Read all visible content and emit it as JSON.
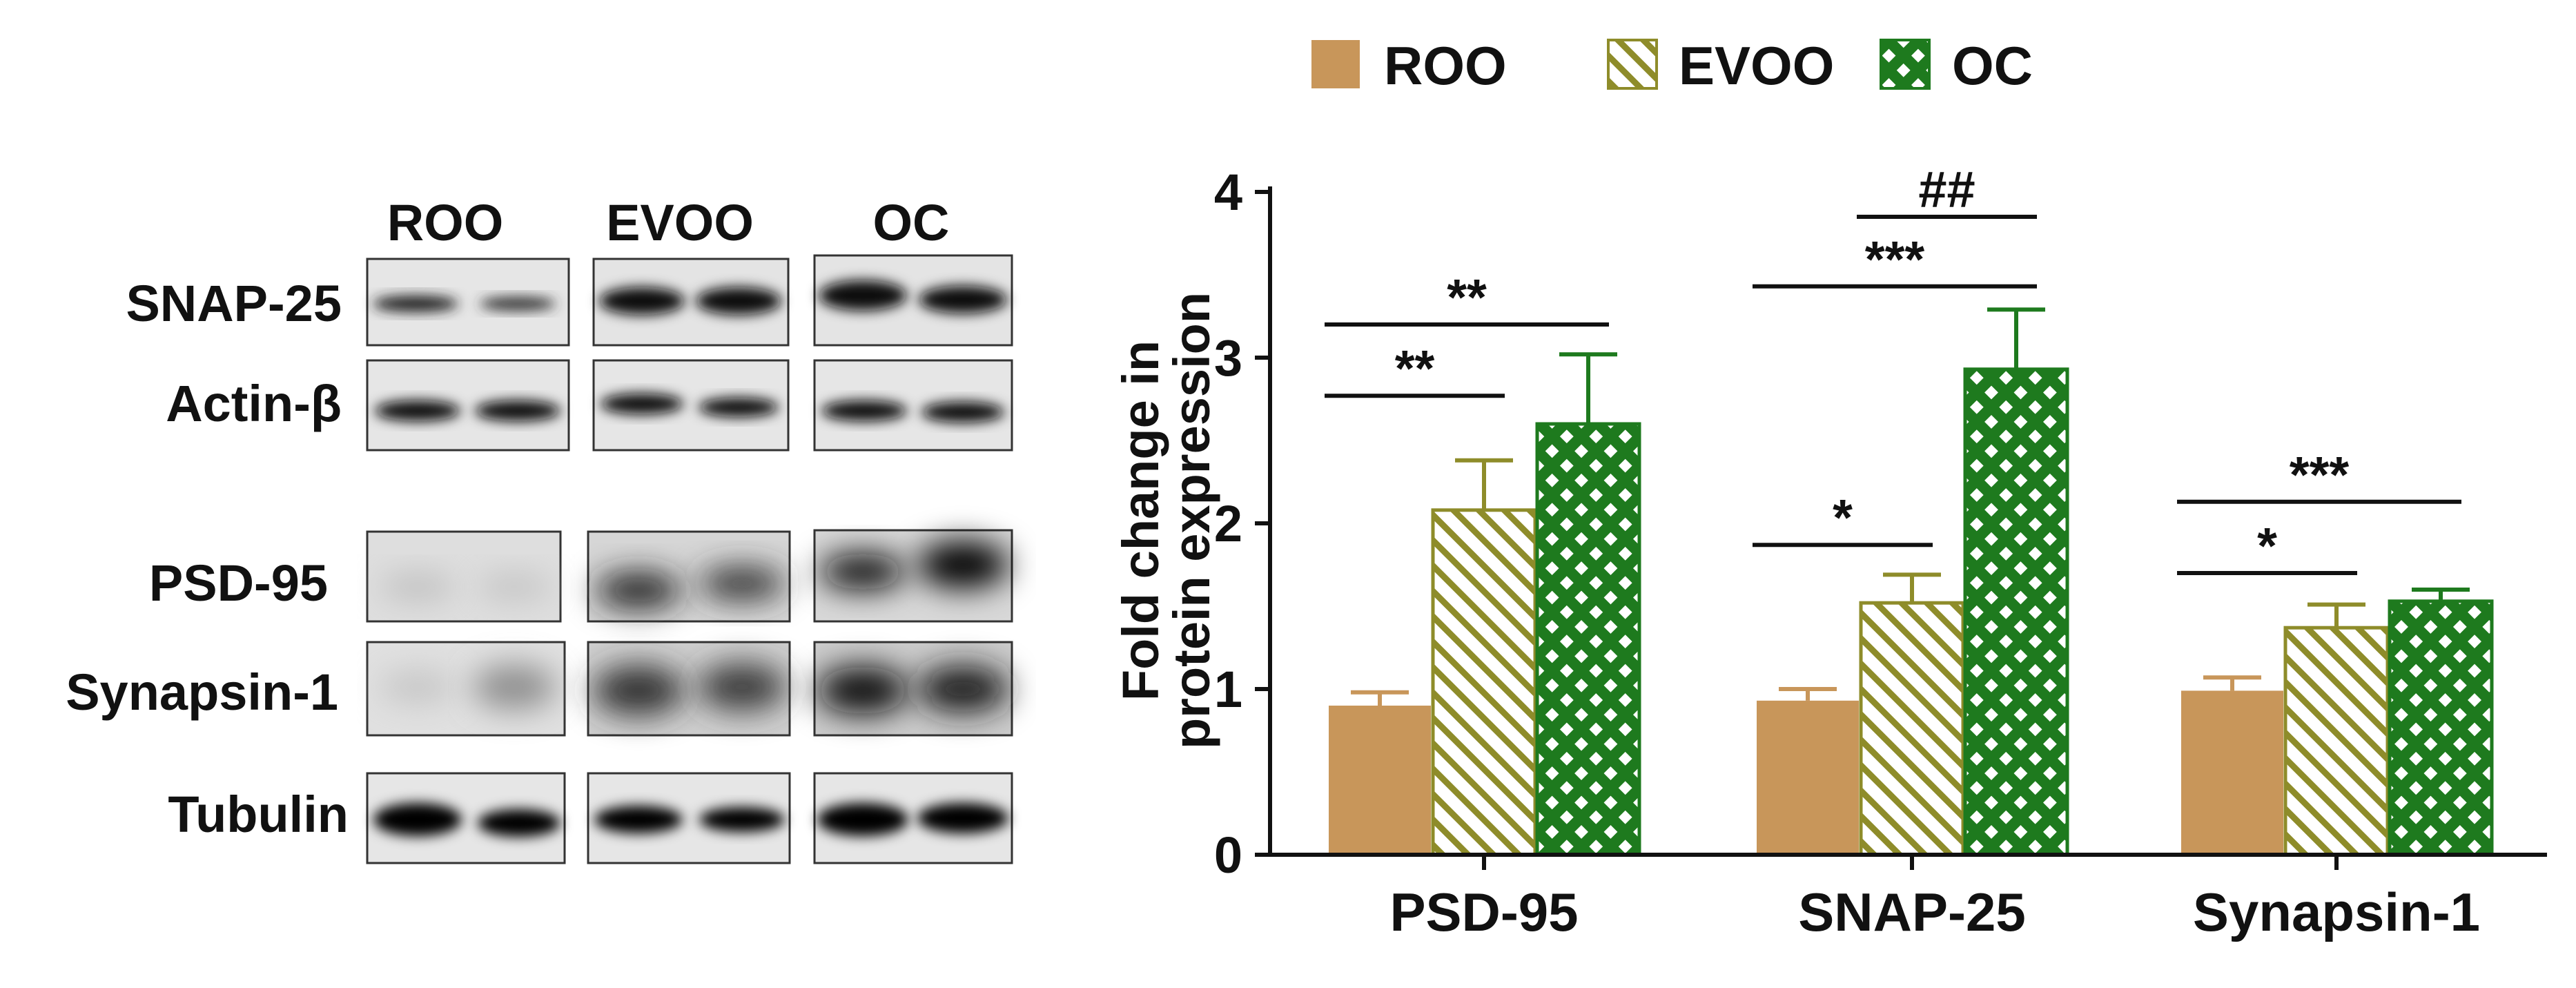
{
  "western_blot": {
    "group_labels": [
      "ROO",
      "EVOO",
      "OC"
    ],
    "row_labels": [
      "SNAP-25",
      "Actin-β",
      "PSD-95",
      "Synapsin-1",
      "Tubulin"
    ]
  },
  "legend": {
    "placement": "top",
    "items": [
      {
        "label": "ROO",
        "pattern": "solid"
      },
      {
        "label": "EVOO",
        "pattern": "diagonal-hatch"
      },
      {
        "label": "OC",
        "pattern": "checkered"
      }
    ]
  },
  "colors": {
    "roo": "#C8965A",
    "evoo_line": "#8E8C2A",
    "oc": "#1E7A1E",
    "axis": "#111111"
  },
  "chart_data": {
    "type": "bar",
    "ylabel_line1": "Fold change in",
    "ylabel_line2": "protein expression",
    "xlabel": "",
    "ylim": [
      0,
      4
    ],
    "yticks": [
      "0",
      "1",
      "2",
      "3",
      "4"
    ],
    "categories": [
      "PSD-95",
      "SNAP-25",
      "Synapsin-1"
    ],
    "series": [
      {
        "name": "ROO",
        "values": [
          0.9,
          0.93,
          0.99
        ],
        "errors": [
          0.08,
          0.07,
          0.08
        ]
      },
      {
        "name": "EVOO",
        "values": [
          2.08,
          1.52,
          1.37
        ],
        "errors": [
          0.3,
          0.17,
          0.14
        ]
      },
      {
        "name": "OC",
        "values": [
          2.6,
          2.93,
          1.53
        ],
        "errors": [
          0.42,
          0.36,
          0.07
        ]
      }
    ],
    "significance": [
      {
        "category": 0,
        "from": 0,
        "to": 1,
        "label": "**",
        "level": 2.77
      },
      {
        "category": 0,
        "from": 0,
        "to": 2,
        "label": "**",
        "level": 3.2
      },
      {
        "category": 1,
        "from": 0,
        "to": 1,
        "label": "*",
        "level": 1.87
      },
      {
        "category": 1,
        "from": 0,
        "to": 2,
        "label": "***",
        "level": 3.43
      },
      {
        "category": 1,
        "from": 1,
        "to": 2,
        "label": "##",
        "level": 3.85
      },
      {
        "category": 2,
        "from": 0,
        "to": 1,
        "label": "*",
        "level": 1.7
      },
      {
        "category": 2,
        "from": 0,
        "to": 2,
        "label": "***",
        "level": 2.13
      }
    ]
  }
}
